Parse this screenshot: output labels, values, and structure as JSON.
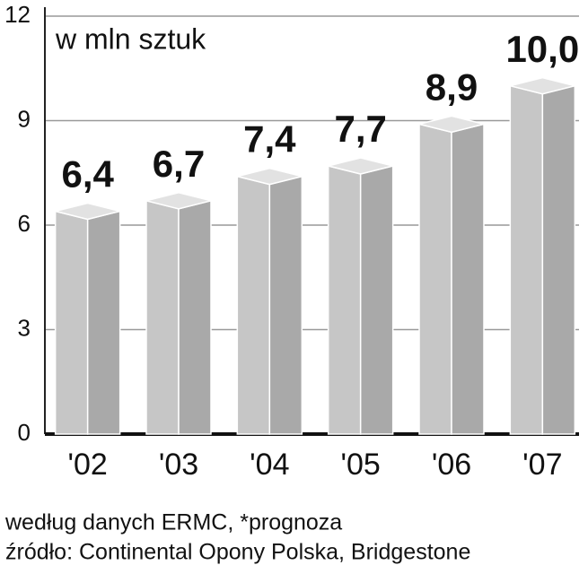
{
  "chart_data": {
    "type": "bar3d",
    "title": "w mln sztuk",
    "categories": [
      "'02",
      "'03",
      "'04",
      "'05",
      "'06",
      "'07"
    ],
    "values": [
      6.4,
      6.7,
      7.4,
      7.7,
      8.9,
      10.0
    ],
    "value_labels": [
      "6,4",
      "6,7",
      "7,4",
      "7,7",
      "8,9",
      "10,0"
    ],
    "color": "#c6c6c6",
    "side_color": "#a9a9a9",
    "top_color": "#e2e2e2",
    "ylim": [
      0,
      12
    ],
    "yticks": [
      0,
      3,
      6,
      9,
      12
    ],
    "grid": true,
    "note": "według danych ERMC, *prognoza",
    "source": "źródło: Continental Opony Polska, Bridgestone"
  }
}
